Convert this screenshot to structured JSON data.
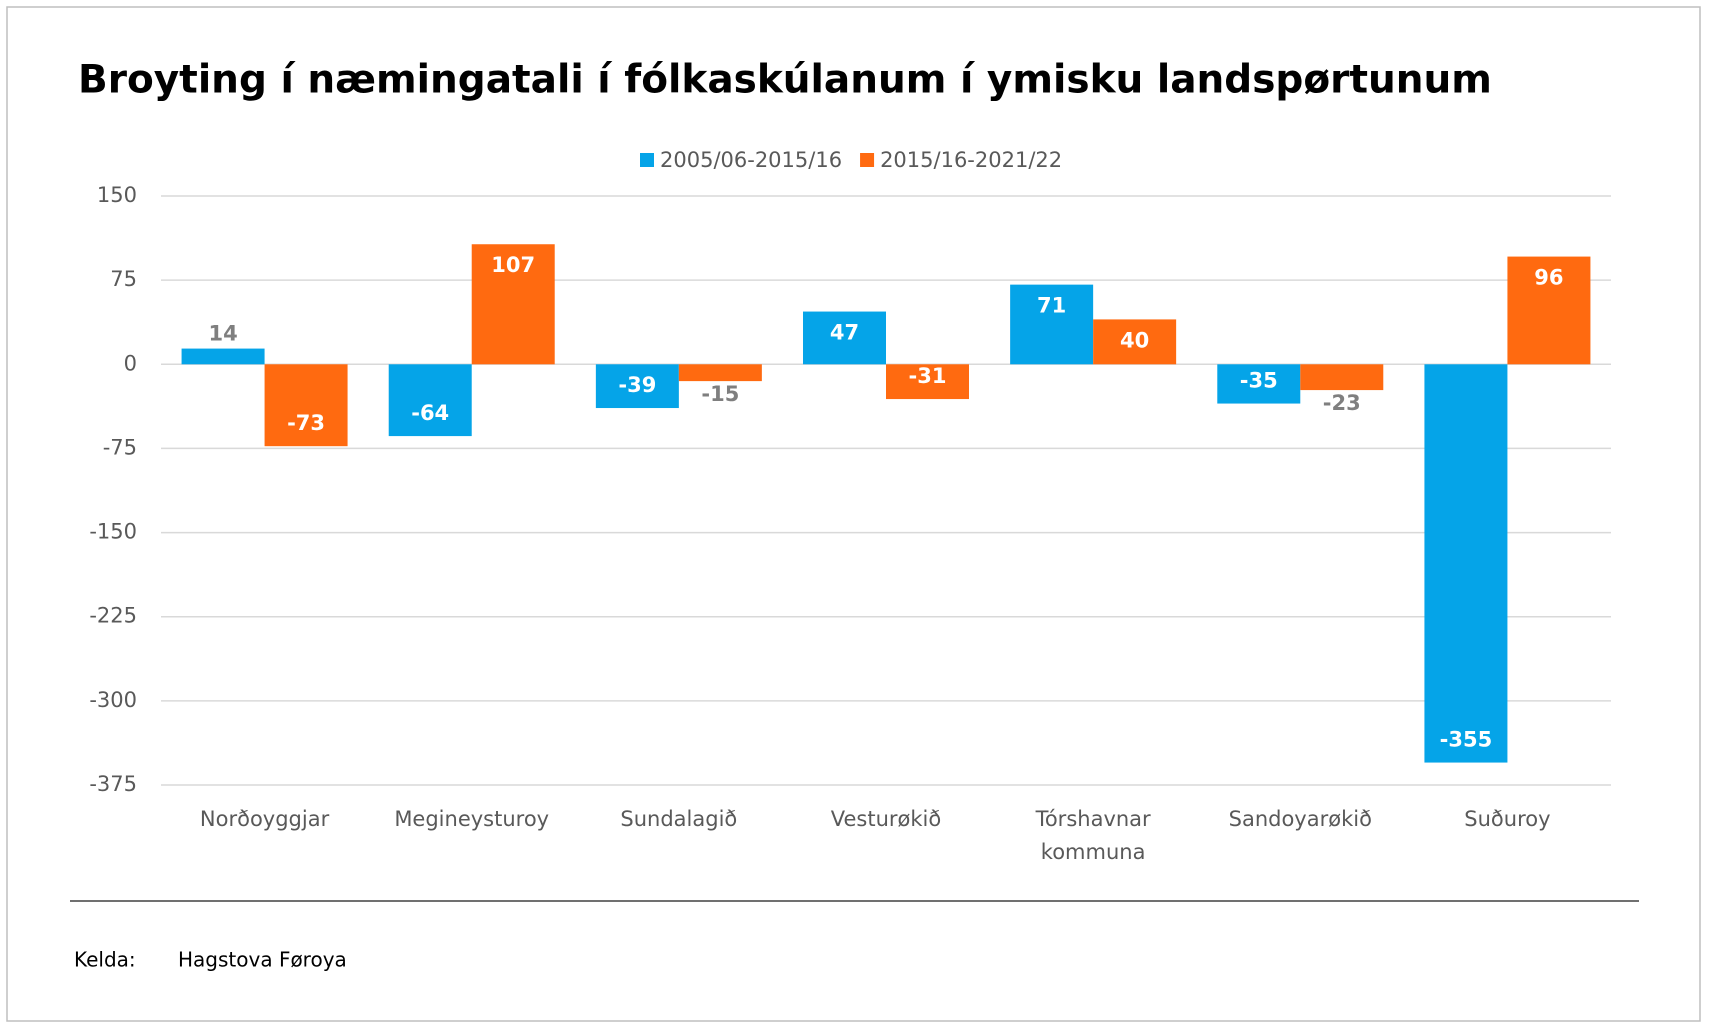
{
  "chart_data": {
    "type": "bar",
    "title": "Broyting í næmingatali í fólkaskúlanum í ymisku landspørtunum",
    "categories": [
      "Norðoyggjar",
      "Megineysturoy",
      "Sundalagið",
      "Vesturøkið",
      "Tórshavnar kommuna",
      "Sandoyarøkið",
      "Suðuroy"
    ],
    "series": [
      {
        "name": "2005/06-2015/16",
        "color": "#05a4e8",
        "values": [
          14,
          -64,
          -39,
          47,
          71,
          -35,
          -355
        ]
      },
      {
        "name": "2015/16-2021/22",
        "color": "#ff6a10",
        "values": [
          -73,
          107,
          -15,
          -31,
          40,
          -23,
          96
        ]
      }
    ],
    "ylim": [
      -375,
      150
    ],
    "yticks": [
      150,
      75,
      0,
      -75,
      -150,
      -225,
      -300,
      -375
    ],
    "grid": true,
    "legend": "top"
  },
  "source_label": "Kelda:",
  "source": "Hagstova Føroya"
}
